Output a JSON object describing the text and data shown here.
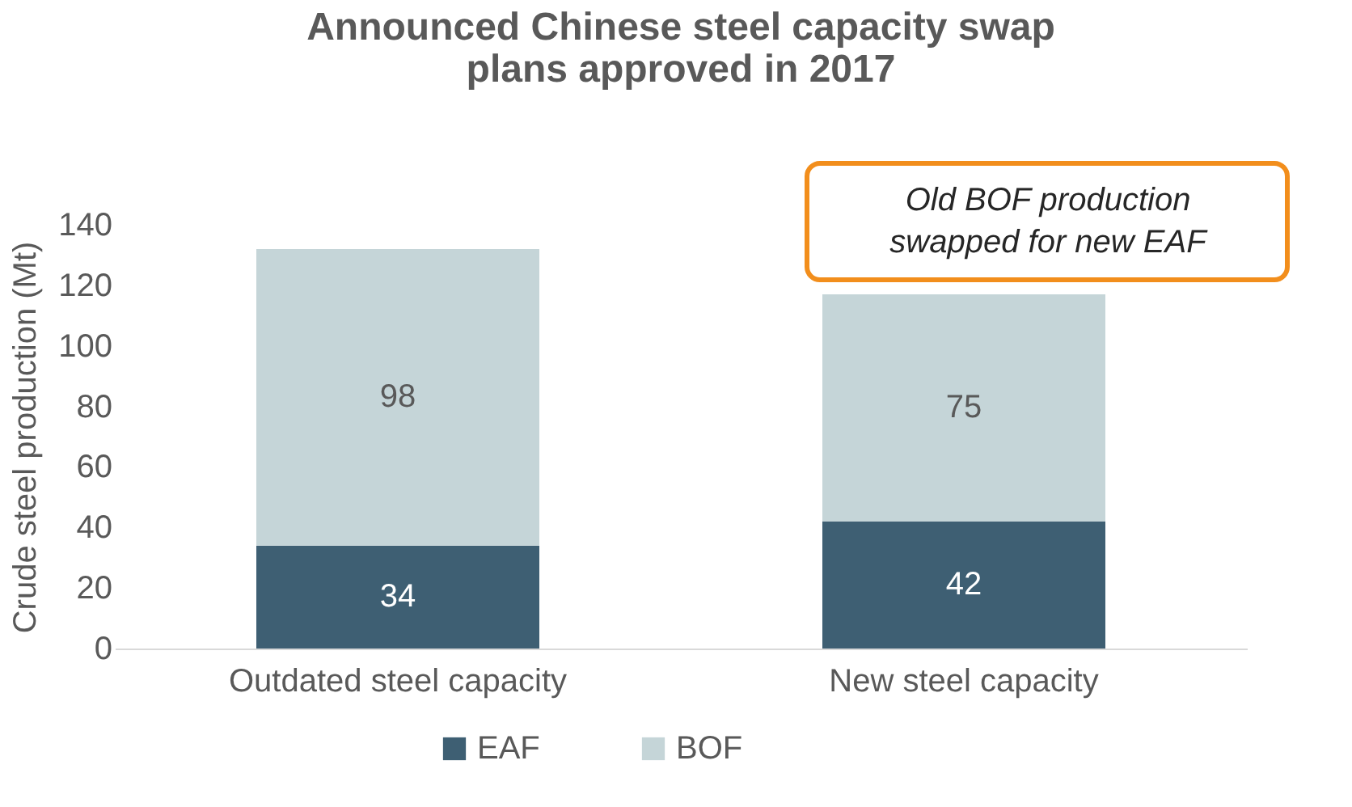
{
  "chart_data": {
    "type": "bar",
    "title": "Announced Chinese steel capacity swap plans approved in 2017",
    "ylabel": "Crude steel production (Mt)",
    "categories": [
      "Outdated steel capacity",
      "New steel capacity"
    ],
    "series": [
      {
        "name": "EAF",
        "color": "#3e5f73",
        "values": [
          34,
          42
        ]
      },
      {
        "name": "BOF",
        "color": "#c5d5d8",
        "values": [
          98,
          75
        ]
      }
    ],
    "stacked": true,
    "data_labels": true,
    "ylim": [
      0,
      140
    ],
    "yticks": [
      0,
      20,
      40,
      60,
      80,
      100,
      120,
      140
    ],
    "grid": false,
    "legend": "bottom",
    "annotations": [
      "Old BOF production swapped for new EAF"
    ]
  }
}
